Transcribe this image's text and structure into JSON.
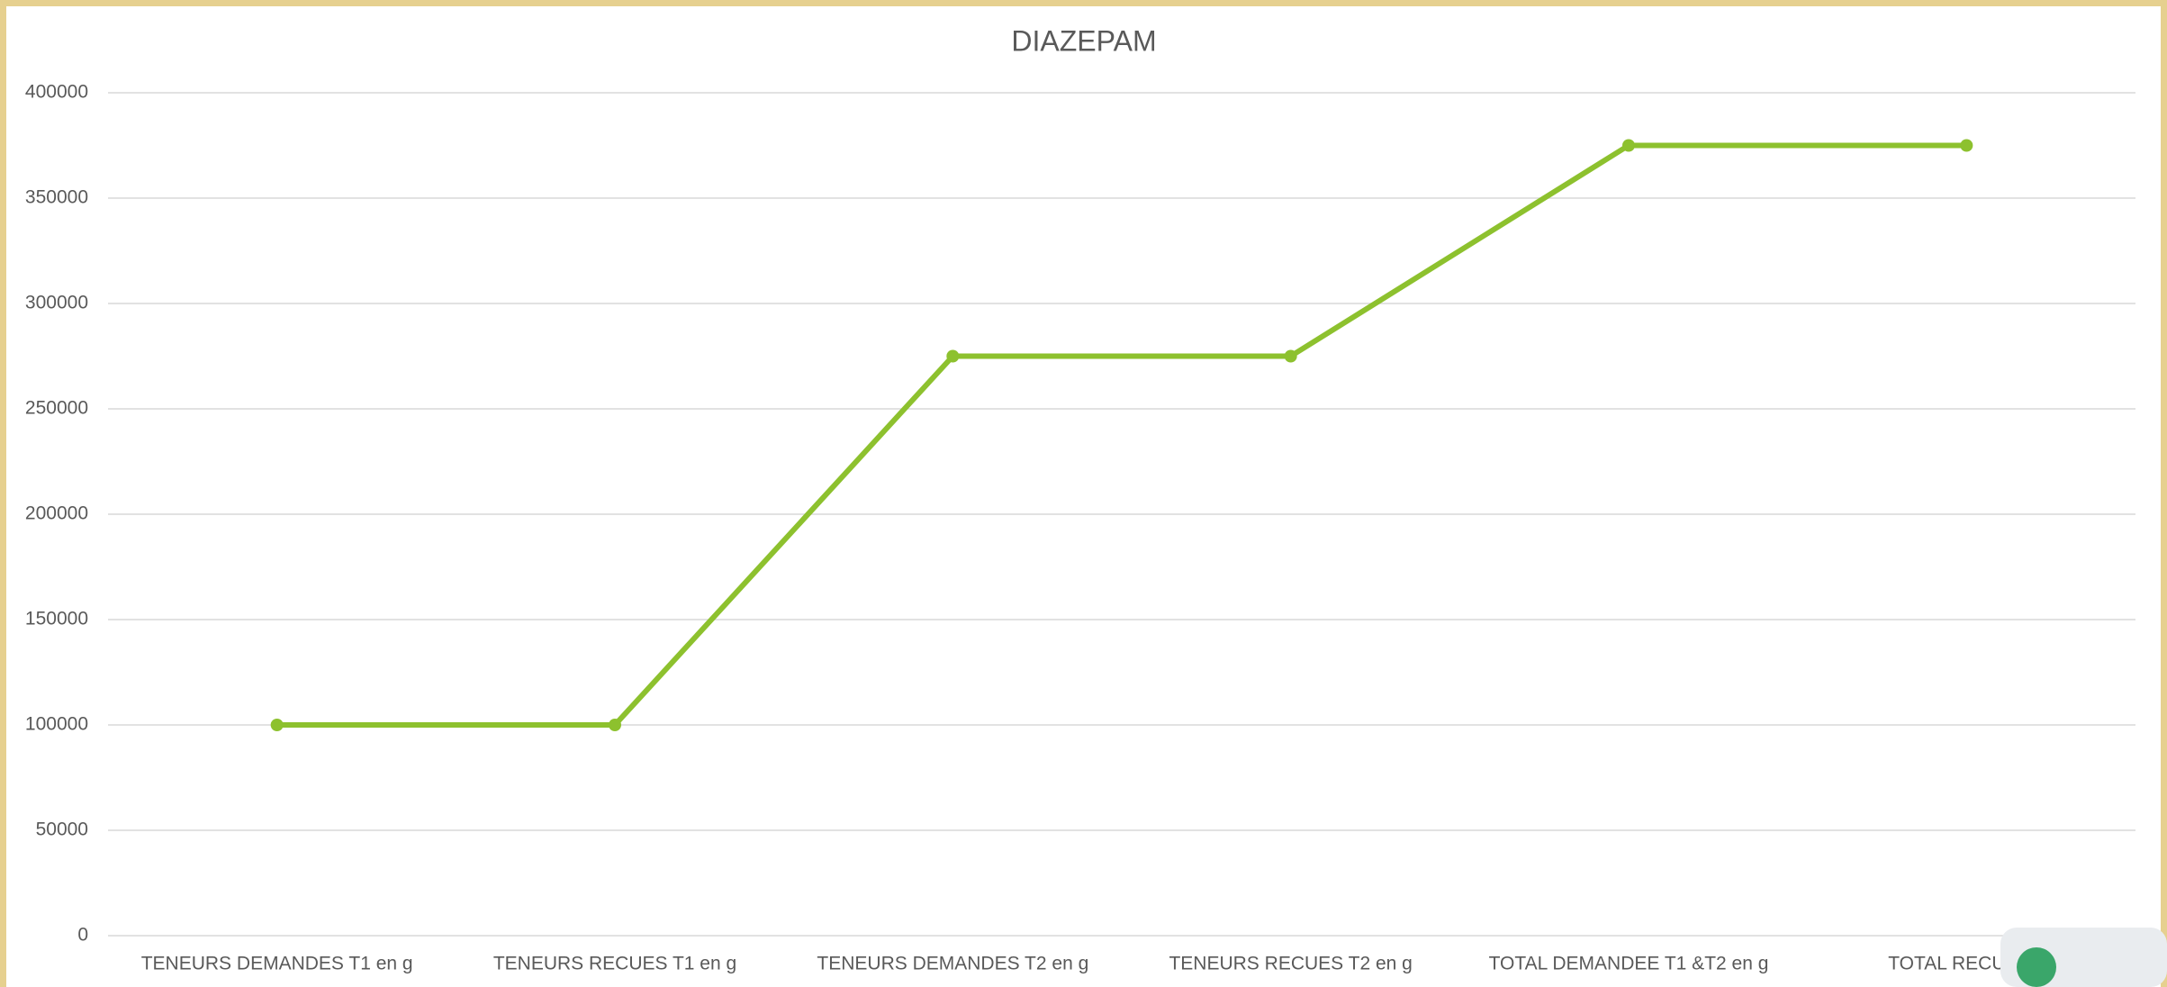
{
  "chart_data": {
    "type": "line",
    "title": "DIAZEPAM",
    "categories": [
      "TENEURS DEMANDES T1 en g",
      "TENEURS RECUES T1 en g",
      "TENEURS DEMANDES T2 en g",
      "TENEURS RECUES T2 en g",
      "TOTAL DEMANDEE T1 &T2 en g",
      "TOTAL RECUE T1"
    ],
    "values": [
      100000,
      100000,
      275000,
      275000,
      375000,
      375000
    ],
    "color": "#8dc12e",
    "ylim": [
      0,
      400000
    ],
    "yticks": [
      0,
      50000,
      100000,
      150000,
      200000,
      250000,
      300000,
      350000,
      400000
    ],
    "grid": true
  }
}
